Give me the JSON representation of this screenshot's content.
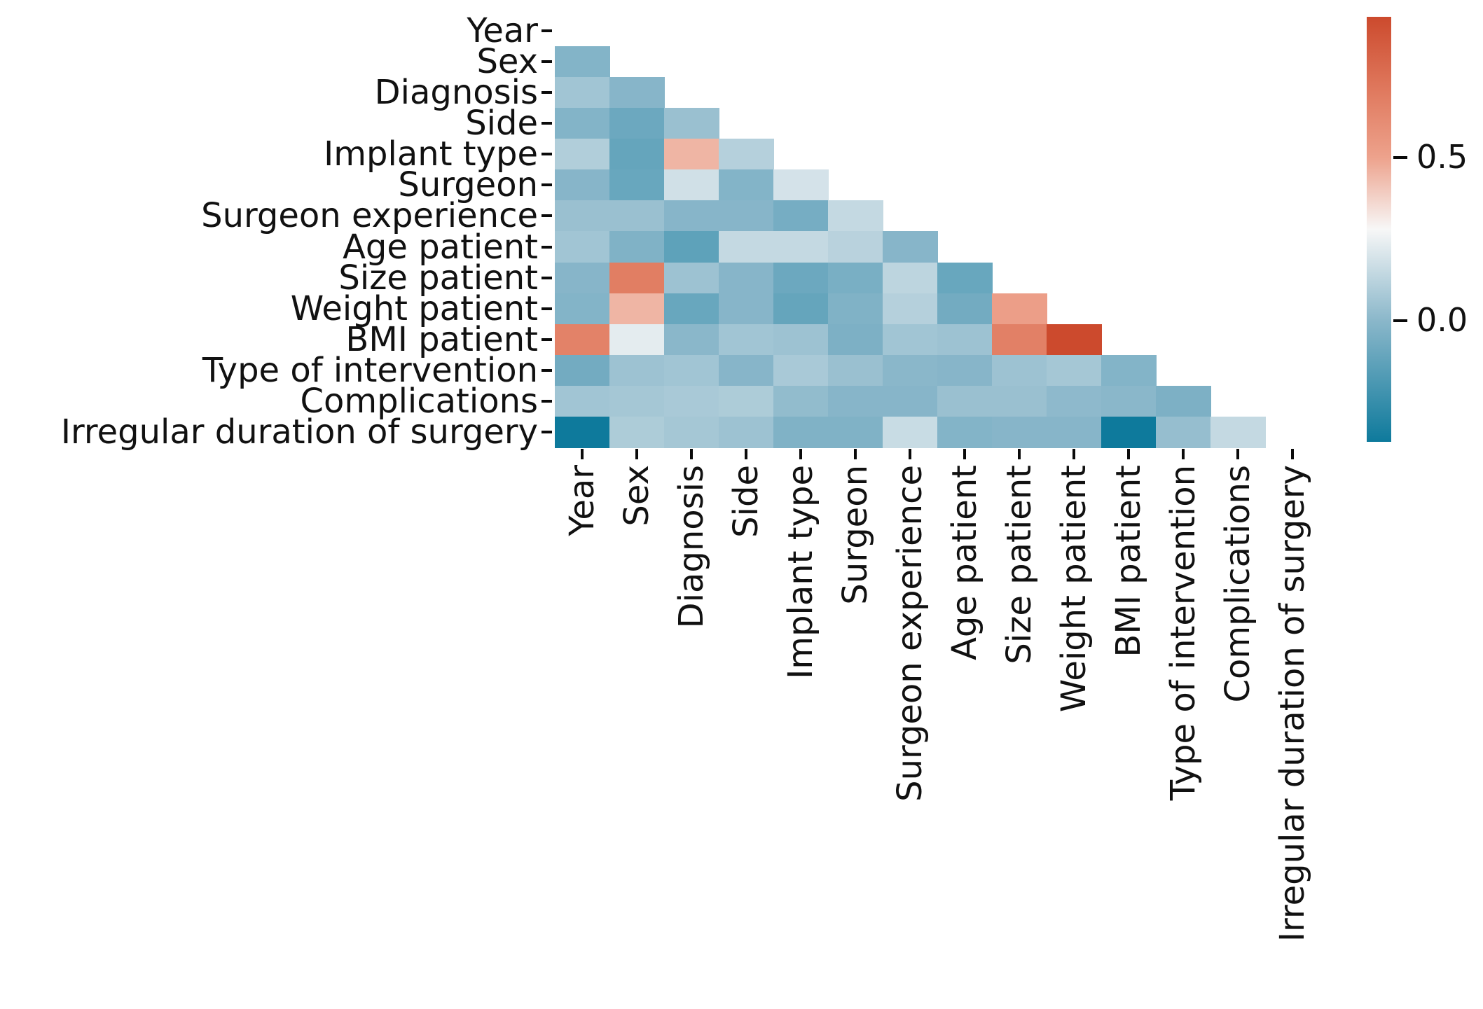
{
  "figure": {
    "background": "#ffffff",
    "description": "Lower-triangular correlation heatmap of surgery dataset variables with vertical colorbar"
  },
  "chart_data": {
    "type": "heatmap",
    "title": "",
    "xlabel": "",
    "ylabel": "",
    "categories": [
      "Year",
      "Sex",
      "Diagnosis",
      "Side",
      "Implant type",
      "Surgeon",
      "Surgeon experience",
      "Age patient",
      "Size patient",
      "Weight patient",
      "BMI patient",
      "Type of intervention",
      "Complications",
      "Irregular duration of surgery"
    ],
    "mask": "upper triangle and diagonal hidden; row i shows correlations with columns 0..i-1",
    "values": [
      [],
      [
        -0.02
      ],
      [
        0.06,
        -0.01
      ],
      [
        -0.02,
        -0.09,
        0.04
      ],
      [
        0.1,
        -0.11,
        0.45,
        0.11
      ],
      [
        -0.01,
        -0.1,
        0.18,
        -0.02,
        0.19
      ],
      [
        0.04,
        0.04,
        -0.01,
        -0.01,
        -0.06,
        0.15
      ],
      [
        0.06,
        -0.03,
        -0.13,
        0.15,
        0.15,
        0.12,
        -0.01
      ],
      [
        -0.01,
        0.68,
        0.05,
        -0.01,
        -0.09,
        -0.05,
        0.13,
        -0.1
      ],
      [
        -0.02,
        0.45,
        -0.1,
        -0.01,
        -0.11,
        -0.03,
        0.11,
        -0.07,
        0.52
      ],
      [
        0.66,
        0.23,
        0.0,
        0.06,
        0.05,
        -0.04,
        0.06,
        0.05,
        0.67,
        0.93
      ],
      [
        -0.07,
        0.05,
        0.06,
        -0.01,
        0.08,
        0.04,
        0.0,
        -0.01,
        0.05,
        0.07,
        -0.02
      ],
      [
        0.06,
        0.07,
        0.08,
        0.09,
        0.02,
        -0.01,
        -0.01,
        0.04,
        0.04,
        0.01,
        0.0,
        -0.04
      ],
      [
        -0.37,
        0.09,
        0.07,
        0.05,
        -0.03,
        -0.03,
        0.16,
        -0.02,
        -0.01,
        -0.01,
        -0.37,
        0.03,
        0.15
      ]
    ],
    "value_range": [
      -0.37,
      0.93
    ],
    "colormap": {
      "stops": [
        {
          "v": -0.37,
          "c": "#0e7a9c"
        },
        {
          "v": 0.0,
          "c": "#8ab7ca"
        },
        {
          "v": 0.28,
          "c": "#f7f7f7"
        },
        {
          "v": 0.5,
          "c": "#eda28c"
        },
        {
          "v": 0.7,
          "c": "#e07a5f"
        },
        {
          "v": 0.93,
          "c": "#cc4a2d"
        }
      ]
    },
    "legend_position": "right",
    "grid": false,
    "colorbar": {
      "ticks": [
        {
          "value": 0.5,
          "label": "0.5"
        },
        {
          "value": 0.0,
          "label": "0.0"
        }
      ]
    }
  }
}
